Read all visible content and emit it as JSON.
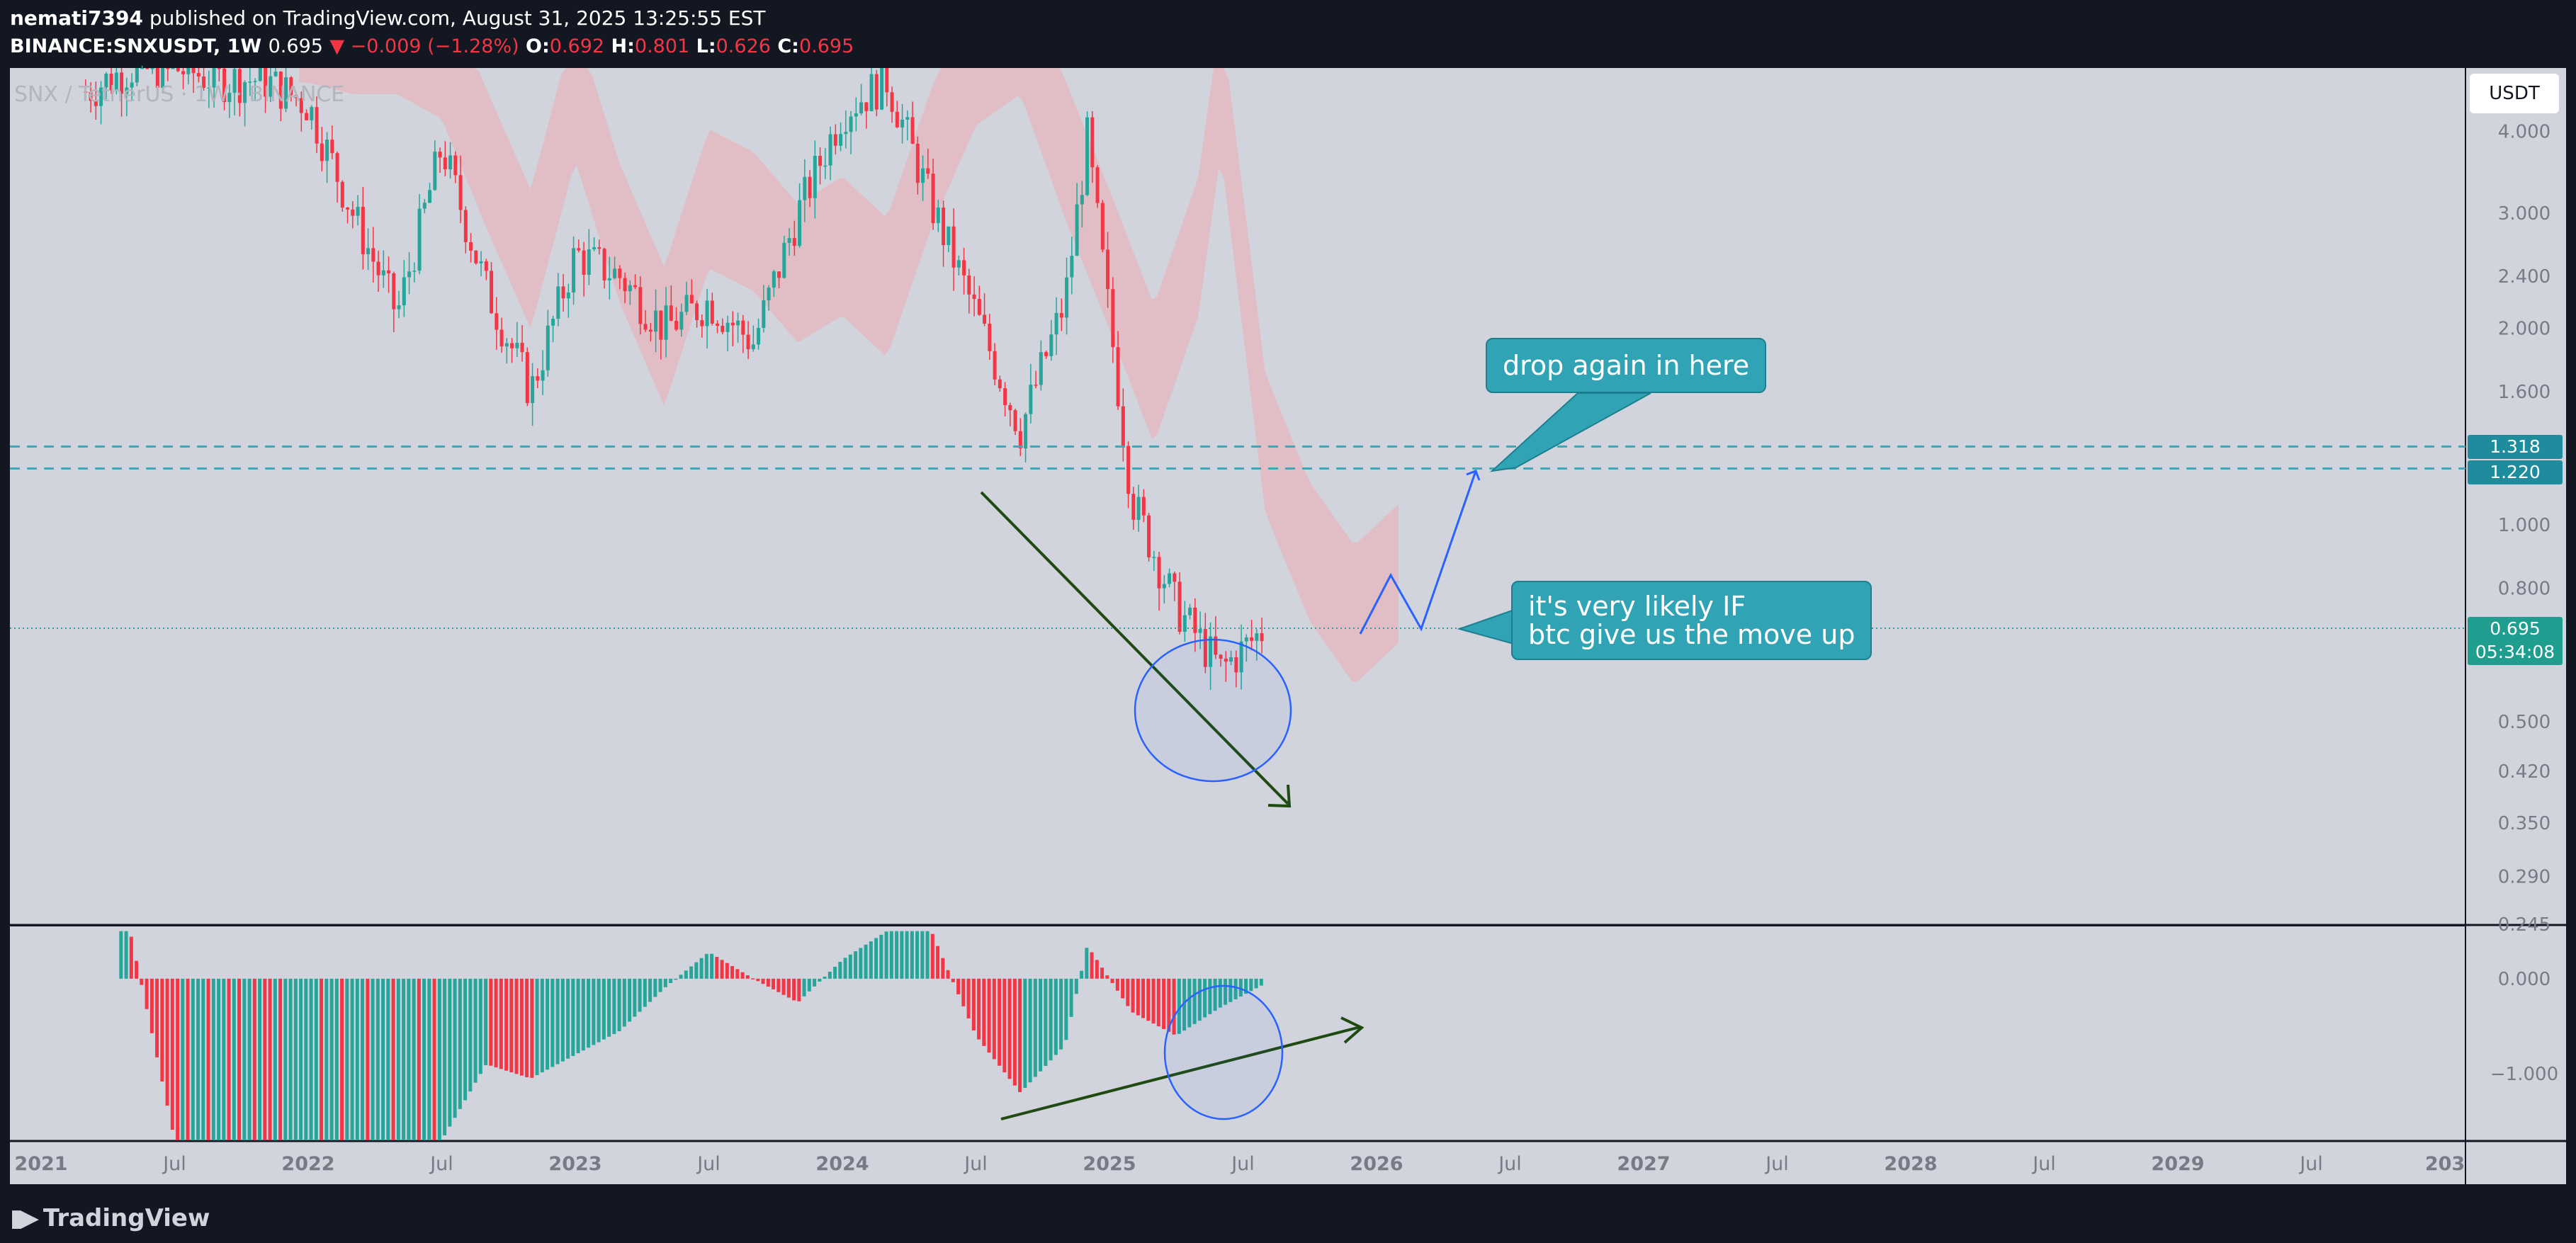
{
  "header": {
    "publisher": "nemati7394",
    "published_text": "published on TradingView.com, August 31, 2025 13:25:55 EST",
    "symbol": "BINANCE:SNXUSDT, 1W",
    "last": "0.695",
    "change": "▼ −0.009 (−1.28%)",
    "open_label": "O:",
    "open": "0.692",
    "high_label": "H:",
    "high": "0.801",
    "low_label": "L:",
    "low": "0.626",
    "close_label": "C:",
    "close": "0.695"
  },
  "watermark": "SNX / TetherUS · 1W · BINANCE",
  "currency": "USDT",
  "price_tags": {
    "level_1": "1.318",
    "level_2": "1.220",
    "current": "0.695",
    "countdown": "05:34:08"
  },
  "annotations": {
    "drop": "drop again in here",
    "likely_line1": "it's very likely IF",
    "likely_line2": "btc give us the move up"
  },
  "footer": {
    "brand": "TradingView"
  },
  "colors": {
    "up": "#26a69a",
    "down": "#f23645",
    "cloud_bear": "#f5a5a8",
    "cloud_bull": "#a5d6a7",
    "dashed_level": "#3fa7b7",
    "panel_bg": "#d1d4dc",
    "annotation": "#30a4b5",
    "arrow_dark": "#1f4a12",
    "arrow_blue": "#2962ff"
  },
  "chart_data": [
    {
      "type": "candlestick",
      "title": "SNX / TetherUS · 1W · BINANCE",
      "y_scale": "log",
      "ylim": [
        0.245,
        5.0
      ],
      "y_ticks": [
        "4.000",
        "3.000",
        "2.400",
        "2.000",
        "1.600",
        "1.000",
        "0.800",
        "0.500",
        "0.420",
        "0.350",
        "0.290",
        "0.245"
      ],
      "x_ticks": [
        "2021",
        "Jul",
        "2022",
        "Jul",
        "2023",
        "Jul",
        "2024",
        "Jul",
        "2025",
        "Jul",
        "2026",
        "Jul",
        "2027",
        "Jul",
        "2028",
        "Jul",
        "2029",
        "Jul",
        "203"
      ],
      "horizontal_levels": [
        1.318,
        1.22
      ],
      "current_price": 0.695,
      "series": [
        {
          "x": [
            "2021-03",
            "2021-05",
            "2021-07",
            "2021-09",
            "2021-11",
            "2022-01",
            "2022-03",
            "2022-05",
            "2022-07",
            "2022-09",
            "2022-11",
            "2023-01",
            "2023-03",
            "2023-05",
            "2023-07",
            "2023-09",
            "2023-11",
            "2024-01",
            "2024-03",
            "2024-05",
            "2024-07",
            "2024-09",
            "2024-11",
            "2024-12",
            "2025-02",
            "2025-04",
            "2025-06",
            "2025-08"
          ],
          "values": [
            4.6,
            5.0,
            5.0,
            4.8,
            4.8,
            4.4,
            3.0,
            2.1,
            3.8,
            2.3,
            1.6,
            2.6,
            2.4,
            2.0,
            2.2,
            1.9,
            3.0,
            4.3,
            4.8,
            3.1,
            2.1,
            1.4,
            2.2,
            3.9,
            1.1,
            0.75,
            0.6,
            0.695
          ]
        }
      ]
    },
    {
      "type": "bar",
      "title": "",
      "ylim": [
        -1.7,
        0.55
      ],
      "y_ticks": [
        "0.000",
        "−1.000"
      ],
      "series": [
        {
          "x": [
            "2021-03",
            "2021-05",
            "2021-07",
            "2021-09",
            "2021-11",
            "2022-01",
            "2022-03",
            "2022-05",
            "2022-07",
            "2022-09",
            "2022-11",
            "2023-01",
            "2023-03",
            "2023-05",
            "2023-07",
            "2023-09",
            "2023-11",
            "2024-01",
            "2024-03",
            "2024-05",
            "2024-07",
            "2024-09",
            "2024-11",
            "2024-12",
            "2025-02",
            "2025-04",
            "2025-06",
            "2025-08"
          ],
          "values": [
            0.5,
            0.5,
            -1.7,
            -1.7,
            -1.7,
            -1.7,
            -1.7,
            -1.7,
            -1.7,
            -0.9,
            -1.05,
            -0.8,
            -0.55,
            -0.1,
            0.28,
            0.0,
            -0.25,
            0.2,
            0.5,
            0.5,
            -0.6,
            -1.2,
            -0.7,
            0.35,
            -0.35,
            -0.6,
            -0.3,
            -0.05
          ]
        }
      ]
    }
  ]
}
